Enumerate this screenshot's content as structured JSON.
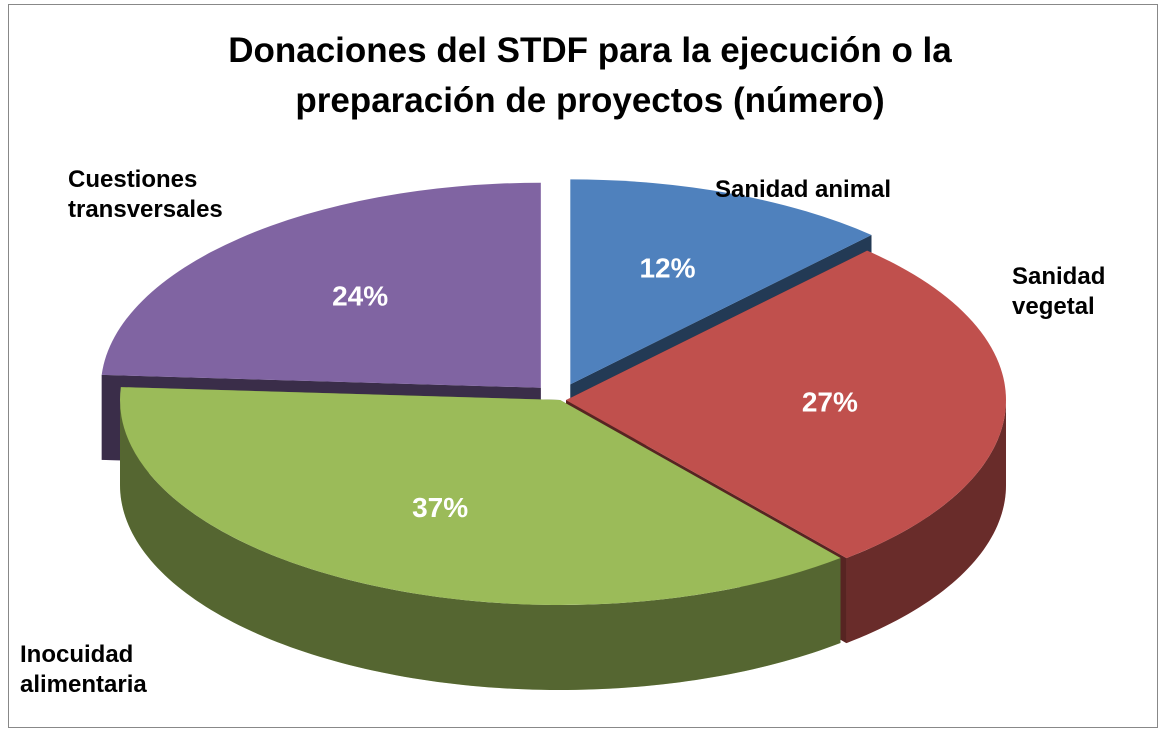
{
  "chart_data": {
    "type": "pie",
    "title": "Donaciones del STDF para la ejecución o la preparación de proyectos (número)",
    "categories": [
      "Sanidad animal",
      "Sanidad vegetal",
      "Inocuidad alimentaria",
      "Cuestiones transversales"
    ],
    "values": [
      12,
      27,
      37,
      24
    ],
    "value_labels": [
      "12%",
      "27%",
      "37%",
      "24%"
    ],
    "colors": [
      "#4f81bd",
      "#c0504d",
      "#9bbb59",
      "#8064a2"
    ]
  }
}
